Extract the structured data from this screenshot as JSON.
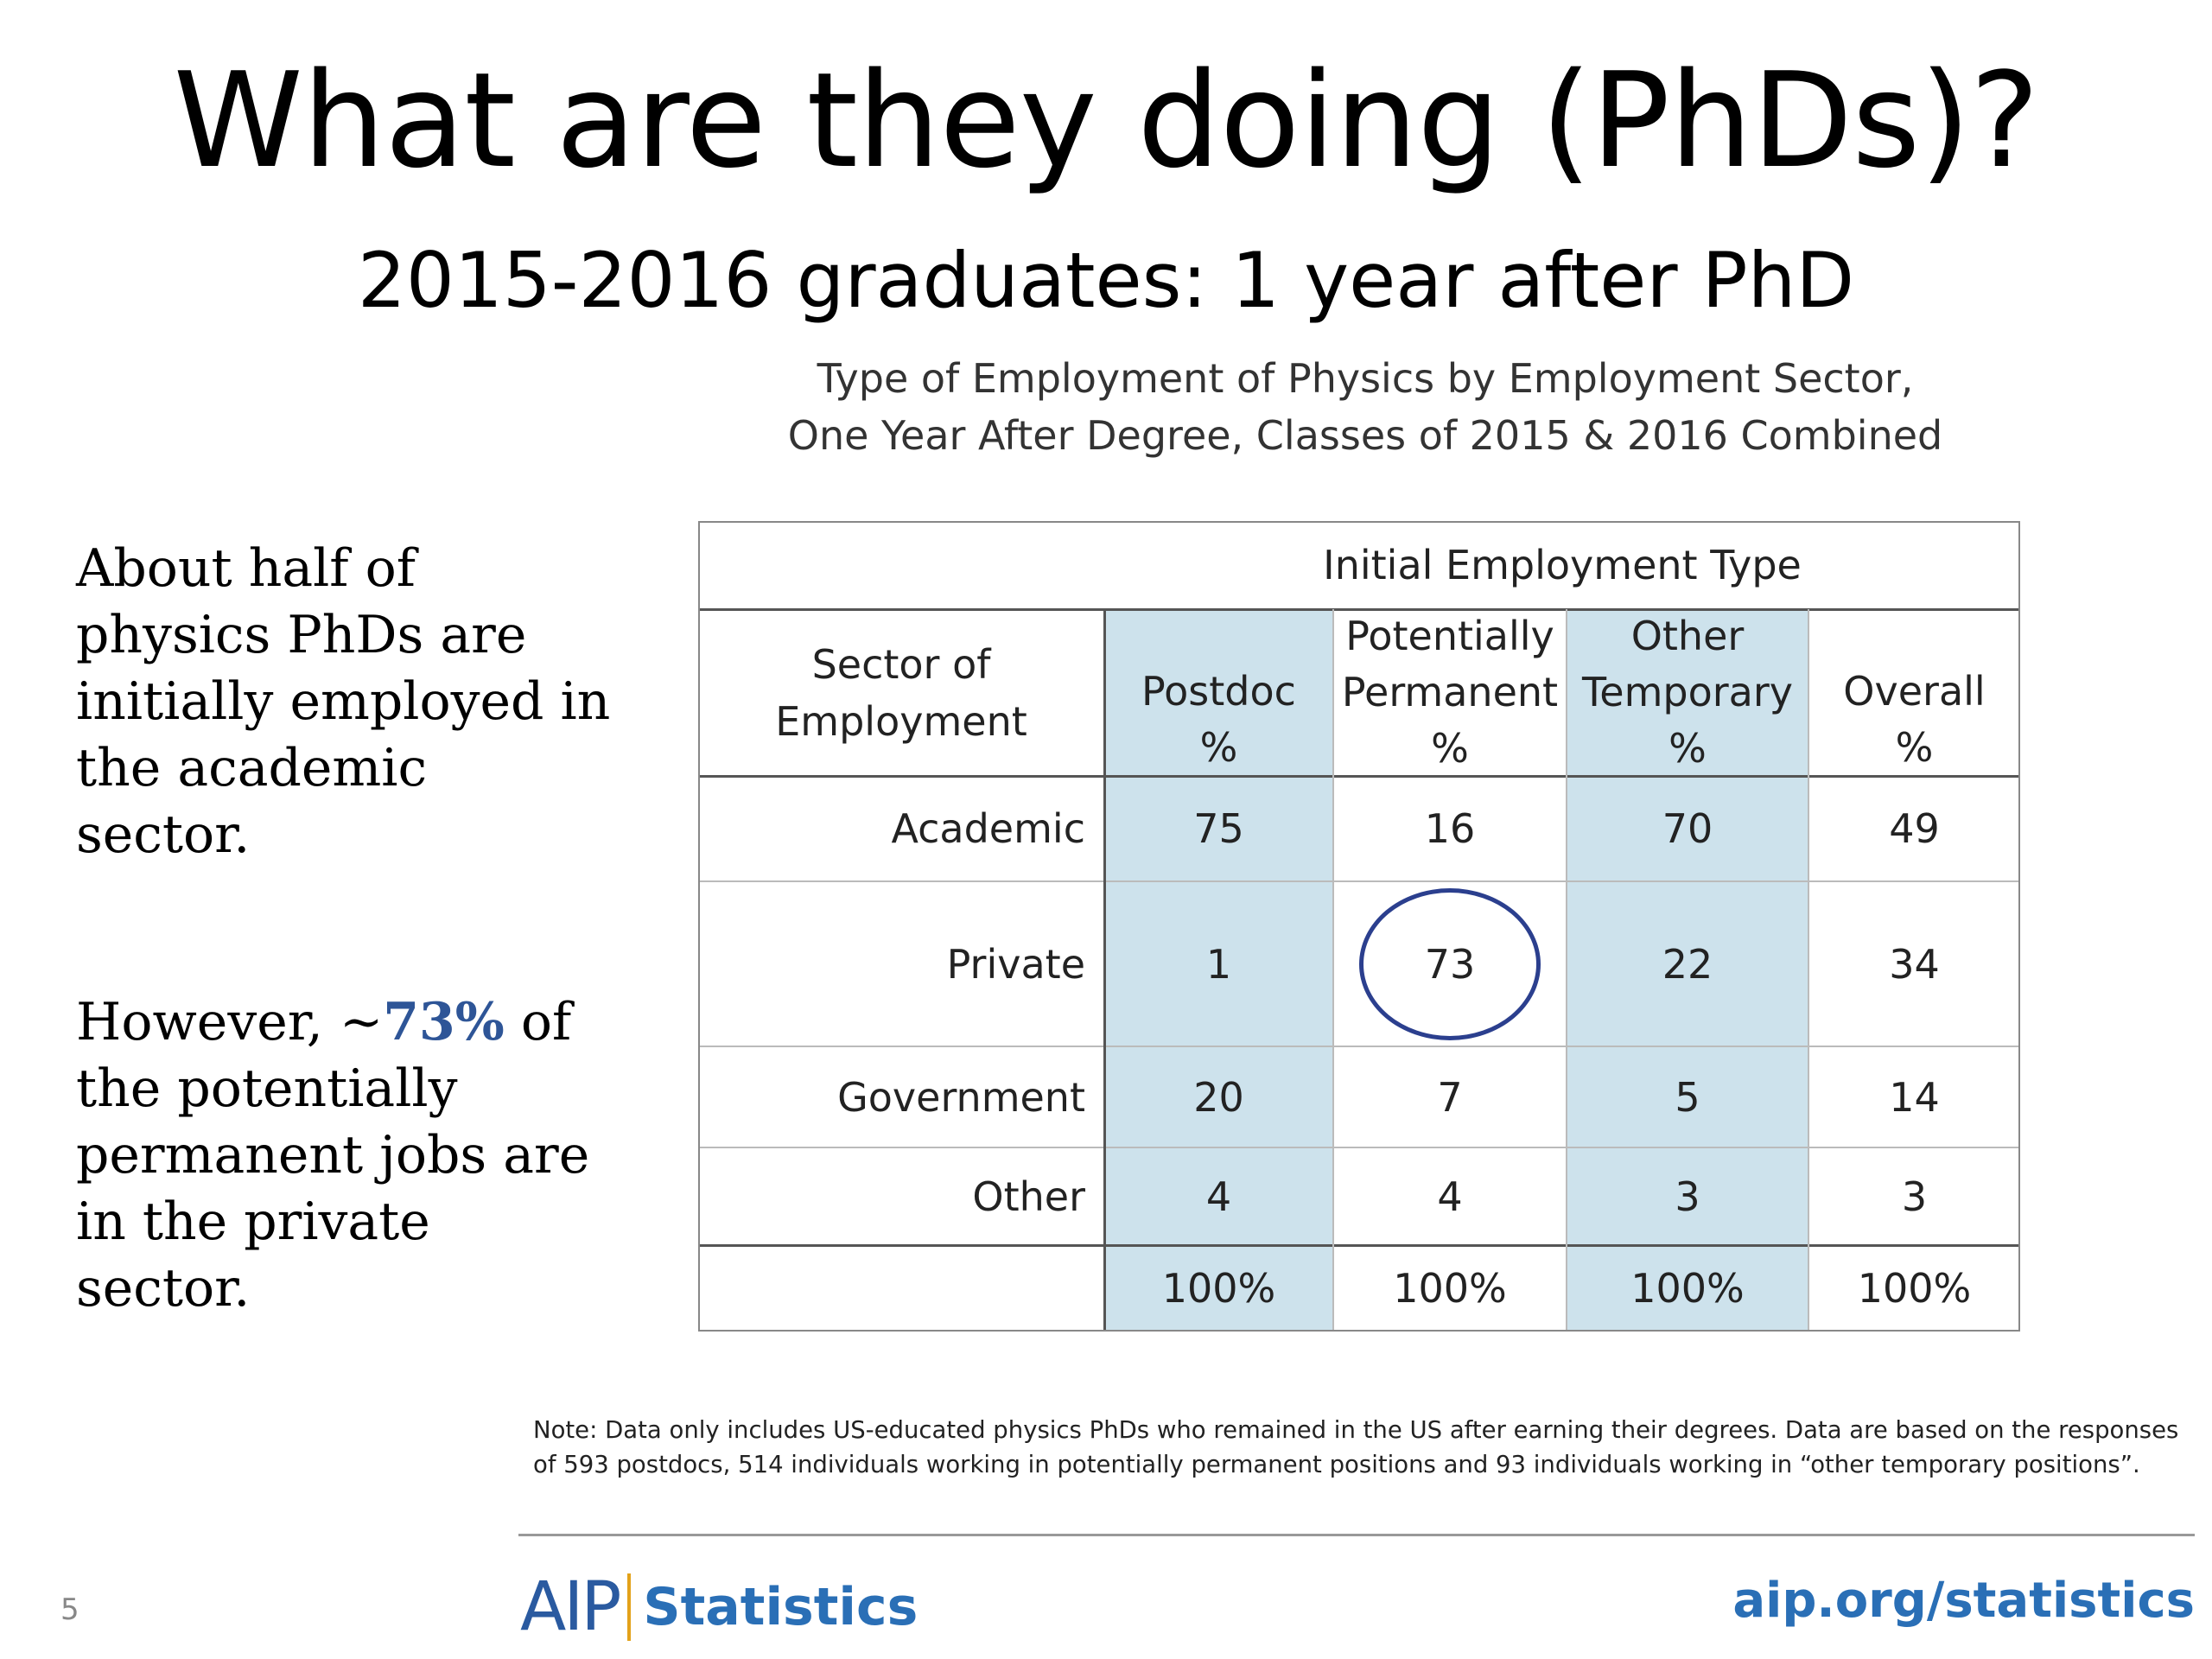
{
  "slide": {
    "title": "What are they doing (PhDs)?",
    "subtitle": "2015-2016 graduates: 1 year after PhD",
    "table_title_line1": "Type of Employment of Physics by Employment Sector,",
    "table_title_line2": "One Year After Degree, Classes of 2015 & 2016 Combined",
    "side_text_1": "About half of physics PhDs are initially employed in the academic sector.",
    "side_text_2_before": "However, ~",
    "side_text_2_highlight": "73%",
    "side_text_2_after": " of the potentially permanent jobs are in the private sector.",
    "page_number": "5",
    "logo_aip": "AIP",
    "logo_statistics": "Statistics",
    "url": "aip.org/statistics",
    "note": "Note: Data only includes US-educated physics PhDs who remained in the US after earning their degrees. Data are based on the responses of 593 postdocs, 514 individuals working in potentially permanent positions and 93 individuals working in “other temporary positions”."
  },
  "table": {
    "group_header": "Initial Employment Type",
    "row_header_label_line1": "Sector of",
    "row_header_label_line2": "Employment",
    "columns": [
      {
        "line1": "",
        "line2": "Postdoc",
        "unit": "%"
      },
      {
        "line1": "Potentially",
        "line2": "Permanent",
        "unit": "%"
      },
      {
        "line1": "Other",
        "line2": "Temporary",
        "unit": "%"
      },
      {
        "line1": "",
        "line2": "Overall",
        "unit": "%"
      }
    ],
    "rows": [
      {
        "sector": "Academic",
        "values": [
          "75",
          "16",
          "70",
          "49"
        ]
      },
      {
        "sector": "Private",
        "values": [
          "1",
          "73",
          "22",
          "34"
        ]
      },
      {
        "sector": "Government",
        "values": [
          "20",
          "7",
          "5",
          "14"
        ]
      },
      {
        "sector": "Other",
        "values": [
          "4",
          "4",
          "3",
          "3"
        ]
      }
    ],
    "totals": [
      "100%",
      "100%",
      "100%",
      "100%"
    ],
    "highlighted_cell": "73",
    "shade_color": "#cde2ec",
    "highlight_color": "#2b3f8e"
  }
}
